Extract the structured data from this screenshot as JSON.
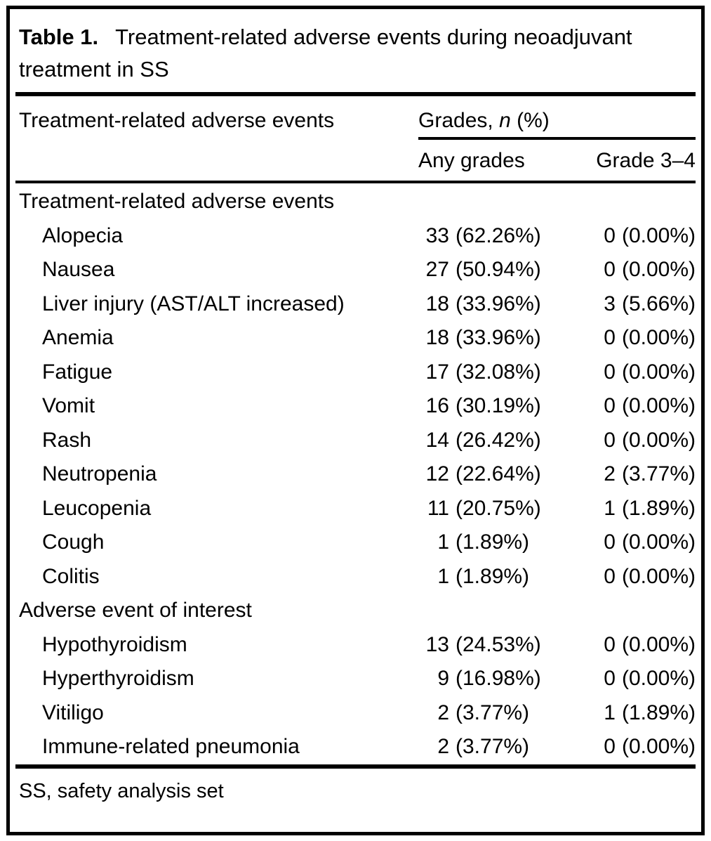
{
  "page": {
    "background_color": "#ffffff",
    "text_color": "#000000",
    "rule_color": "#000000"
  },
  "table": {
    "label": "Table 1.",
    "caption": "Treatment-related adverse events during neoadjuvant treatment in SS",
    "header": {
      "col1": "Treatment-related adverse events",
      "grades_prefix": "Grades, ",
      "grades_italic": "n",
      "grades_suffix": " (%)",
      "any_col": "Any grades",
      "grade34_col": "Grade 3–4"
    },
    "rows": [
      {
        "type": "section",
        "label": "Treatment-related adverse events"
      },
      {
        "type": "item",
        "label": "Alopecia",
        "any_n": "33",
        "any_pct": "(62.26%)",
        "g34_n": "0",
        "g34_pct": "(0.00%)"
      },
      {
        "type": "item",
        "label": "Nausea",
        "any_n": "27",
        "any_pct": "(50.94%)",
        "g34_n": "0",
        "g34_pct": "(0.00%)"
      },
      {
        "type": "item",
        "label": "Liver injury (AST/ALT increased)",
        "any_n": "18",
        "any_pct": "(33.96%)",
        "g34_n": "3",
        "g34_pct": "(5.66%)"
      },
      {
        "type": "item",
        "label": "Anemia",
        "any_n": "18",
        "any_pct": "(33.96%)",
        "g34_n": "0",
        "g34_pct": "(0.00%)"
      },
      {
        "type": "item",
        "label": "Fatigue",
        "any_n": "17",
        "any_pct": "(32.08%)",
        "g34_n": "0",
        "g34_pct": "(0.00%)"
      },
      {
        "type": "item",
        "label": "Vomit",
        "any_n": "16",
        "any_pct": "(30.19%)",
        "g34_n": "0",
        "g34_pct": "(0.00%)"
      },
      {
        "type": "item",
        "label": "Rash",
        "any_n": "14",
        "any_pct": "(26.42%)",
        "g34_n": "0",
        "g34_pct": "(0.00%)"
      },
      {
        "type": "item",
        "label": "Neutropenia",
        "any_n": "12",
        "any_pct": "(22.64%)",
        "g34_n": "2",
        "g34_pct": "(3.77%)"
      },
      {
        "type": "item",
        "label": "Leucopenia",
        "any_n": "11",
        "any_pct": "(20.75%)",
        "g34_n": "1",
        "g34_pct": "(1.89%)"
      },
      {
        "type": "item",
        "label": "Cough",
        "any_n": "1",
        "any_pct": "(1.89%)",
        "g34_n": "0",
        "g34_pct": "(0.00%)"
      },
      {
        "type": "item",
        "label": "Colitis",
        "any_n": "1",
        "any_pct": "(1.89%)",
        "g34_n": "0",
        "g34_pct": "(0.00%)"
      },
      {
        "type": "section",
        "label": "Adverse event of interest"
      },
      {
        "type": "item",
        "label": "Hypothyroidism",
        "any_n": "13",
        "any_pct": "(24.53%)",
        "g34_n": "0",
        "g34_pct": "(0.00%)"
      },
      {
        "type": "item",
        "label": "Hyperthyroidism",
        "any_n": "9",
        "any_pct": "(16.98%)",
        "g34_n": "0",
        "g34_pct": "(0.00%)"
      },
      {
        "type": "item",
        "label": "Vitiligo",
        "any_n": "2",
        "any_pct": "(3.77%)",
        "g34_n": "1",
        "g34_pct": "(1.89%)"
      },
      {
        "type": "item",
        "label": "Immune-related pneumonia",
        "any_n": "2",
        "any_pct": "(3.77%)",
        "g34_n": "0",
        "g34_pct": "(0.00%)"
      }
    ],
    "footnote": "SS, safety analysis set"
  }
}
